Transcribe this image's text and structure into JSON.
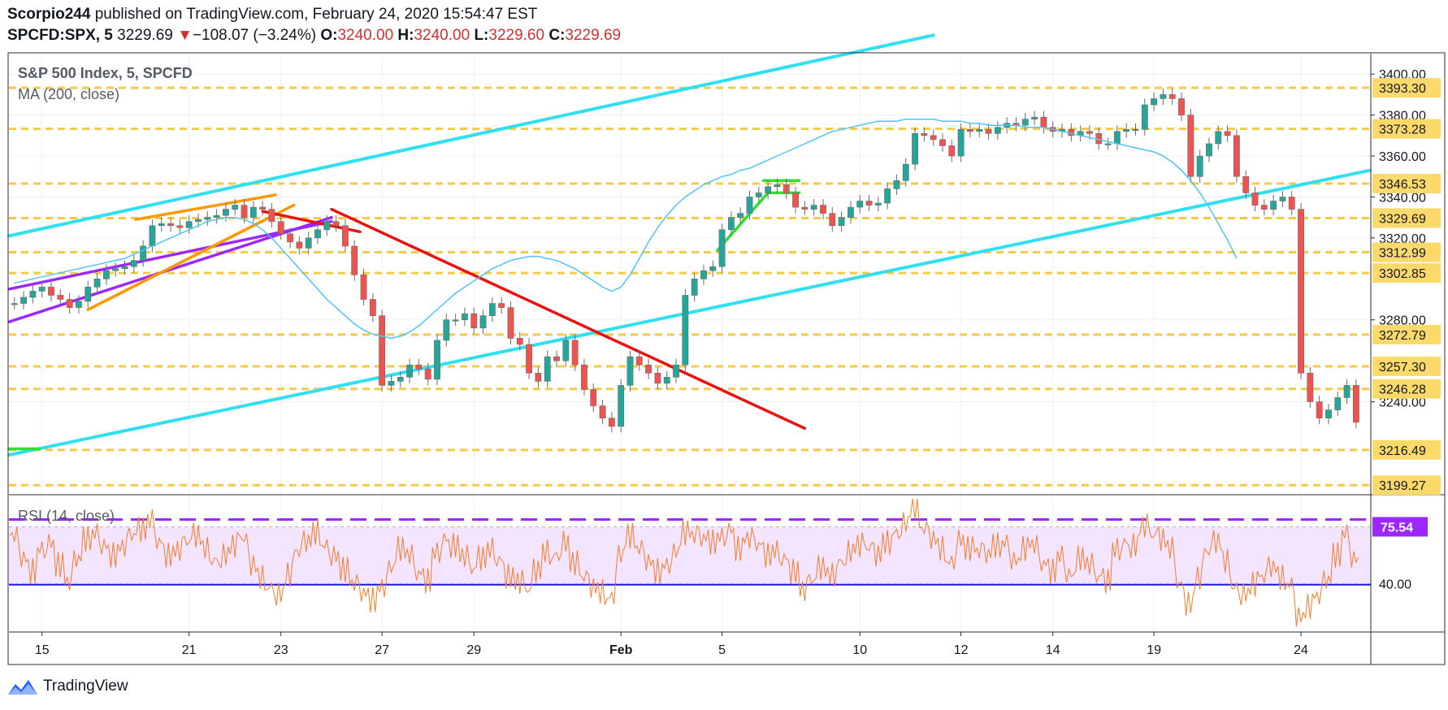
{
  "header": {
    "author": "Scorpio244",
    "published_text": "published on TradingView.com, February 24, 2020 15:54:47 EST",
    "symbol": "SPCFD:SPX, 5",
    "last": "3229.69",
    "change": "−108.07 (−3.24%)",
    "o_label": "O:",
    "o": "3240.00",
    "h_label": "H:",
    "h": "3240.00",
    "l_label": "L:",
    "l": "3229.60",
    "c_label": "C:",
    "c": "3229.69"
  },
  "brand": {
    "name": "TradingView"
  },
  "colors": {
    "candle_up": "#26a69a",
    "candle_down": "#ef5350",
    "candle_body": "#6b6b6b",
    "ma": "#4fc3f7",
    "level": "#f7c948",
    "level_label_bg": "#fbd96a",
    "cyan_trend": "#31e0f0",
    "purple_trend": "#9c27ff",
    "orange_trend": "#ff9800",
    "red_trend": "#ea1111",
    "green_trend": "#33dd33",
    "rsi_line": "#f57c28",
    "rsi_band": "#f3e5ff",
    "rsi_upper": "#9c27ff",
    "rsi_lower": "#1a1adb"
  },
  "chart_data": [
    {
      "type": "candlestick",
      "title": "S&P 500 Index, 5, SPCFD",
      "indicator": "MA (200, close)",
      "ylim": [
        3195,
        3410
      ],
      "y_ticks": [
        3240,
        3280,
        3320,
        3340,
        3360,
        3380,
        3400
      ],
      "y_tick_labels": [
        "3240.00",
        "3280.00",
        "3320.00",
        "3340.00",
        "3360.00",
        "3380.00",
        "3400.00"
      ],
      "x_ticks": [
        {
          "label": "15",
          "index": 3
        },
        {
          "label": "21",
          "index": 19
        },
        {
          "label": "23",
          "index": 29
        },
        {
          "label": "27",
          "index": 40
        },
        {
          "label": "29",
          "index": 50
        },
        {
          "label": "Feb",
          "index": 66
        },
        {
          "label": "5",
          "index": 77
        },
        {
          "label": "10",
          "index": 92
        },
        {
          "label": "12",
          "index": 103
        },
        {
          "label": "14",
          "index": 113
        },
        {
          "label": "19",
          "index": 124
        },
        {
          "label": "24",
          "index": 140
        }
      ],
      "levels": [
        {
          "value": 3393.3,
          "label": "3393.30"
        },
        {
          "value": 3373.28,
          "label": "3373.28"
        },
        {
          "value": 3346.53,
          "label": "3346.53"
        },
        {
          "value": 3329.69,
          "label": "3329.69"
        },
        {
          "value": 3312.99,
          "label": "3312.99"
        },
        {
          "value": 3302.85,
          "label": "3302.85"
        },
        {
          "value": 3272.79,
          "label": "3272.79"
        },
        {
          "value": 3257.3,
          "label": "3257.30"
        },
        {
          "value": 3246.28,
          "label": "3246.28"
        },
        {
          "value": 3216.49,
          "label": "3216.49"
        },
        {
          "value": 3199.27,
          "label": "3199.27"
        }
      ],
      "close": [
        3288,
        3291,
        3294,
        3296,
        3292,
        3290,
        3286,
        3289,
        3296,
        3300,
        3304,
        3305,
        3306,
        3309,
        3316,
        3326,
        3327,
        3326,
        3325,
        3328,
        3329,
        3330,
        3331,
        3334,
        3336,
        3330,
        3335,
        3334,
        3328,
        3322,
        3318,
        3315,
        3320,
        3324,
        3328,
        3326,
        3316,
        3302,
        3290,
        3282,
        3248,
        3250,
        3252,
        3258,
        3256,
        3251,
        3270,
        3280,
        3280,
        3283,
        3276,
        3282,
        3288,
        3286,
        3271,
        3268,
        3254,
        3250,
        3262,
        3260,
        3270,
        3258,
        3246,
        3238,
        3232,
        3228,
        3248,
        3262,
        3258,
        3254,
        3249,
        3252,
        3258,
        3292,
        3300,
        3304,
        3306,
        3324,
        3330,
        3332,
        3340,
        3342,
        3345,
        3346,
        3342,
        3335,
        3334,
        3336,
        3332,
        3326,
        3330,
        3335,
        3338,
        3336,
        3337,
        3344,
        3348,
        3356,
        3371,
        3370,
        3368,
        3365,
        3360,
        3373,
        3372,
        3373,
        3371,
        3374,
        3376,
        3375,
        3378,
        3379,
        3374,
        3372,
        3373,
        3370,
        3372,
        3371,
        3366,
        3366,
        3372,
        3373,
        3373,
        3385,
        3388,
        3390,
        3388,
        3380,
        3350,
        3360,
        3366,
        3372,
        3370,
        3350,
        3342,
        3336,
        3334,
        3338,
        3340,
        3334,
        3254,
        3240,
        3232,
        3236,
        3242,
        3248,
        3230
      ],
      "ma": [
        3298,
        3299,
        3300,
        3301,
        3302,
        3303,
        3304,
        3305,
        3306,
        3307,
        3308,
        3309,
        3310,
        3312,
        3314,
        3316,
        3318,
        3320,
        3322,
        3324,
        3326,
        3328,
        3329,
        3330,
        3330,
        3329,
        3327,
        3324,
        3320,
        3315,
        3310,
        3305,
        3300,
        3295,
        3290,
        3286,
        3282,
        3278,
        3275,
        3273,
        3272,
        3271,
        3272,
        3274,
        3277,
        3281,
        3285,
        3289,
        3293,
        3296,
        3299,
        3302,
        3305,
        3307,
        3309,
        3310,
        3311,
        3311,
        3310,
        3309,
        3307,
        3305,
        3302,
        3299,
        3296,
        3294,
        3296,
        3302,
        3310,
        3318,
        3325,
        3331,
        3336,
        3340,
        3343,
        3346,
        3348,
        3350,
        3351,
        3353,
        3354,
        3356,
        3358,
        3360,
        3362,
        3364,
        3366,
        3368,
        3370,
        3372,
        3373,
        3374,
        3375,
        3376,
        3377,
        3377,
        3377,
        3378,
        3378,
        3378,
        3378,
        3377,
        3377,
        3377,
        3376,
        3376,
        3375,
        3375,
        3375,
        3375,
        3374,
        3374,
        3374,
        3373,
        3372,
        3371,
        3370,
        3369,
        3368,
        3367,
        3366,
        3365,
        3364,
        3363,
        3362,
        3360,
        3357,
        3353,
        3348,
        3342,
        3335,
        3327,
        3319,
        3310
      ],
      "rsi": {
        "title": "RSI (14, close)",
        "level_label": "75.54",
        "tick_label": "40.00",
        "upper": 75.54,
        "lower": 40,
        "ylim": [
          10,
          95
        ],
        "values": [
          70,
          56,
          48,
          62,
          66,
          52,
          41,
          55,
          68,
          72,
          64,
          58,
          63,
          70,
          74,
          80,
          66,
          58,
          61,
          66,
          70,
          62,
          55,
          58,
          64,
          68,
          52,
          44,
          38,
          34,
          46,
          60,
          66,
          72,
          64,
          58,
          49,
          40,
          34,
          30,
          38,
          50,
          62,
          58,
          46,
          42,
          60,
          68,
          64,
          57,
          49,
          56,
          62,
          55,
          45,
          41,
          36,
          48,
          60,
          58,
          66,
          53,
          44,
          38,
          35,
          32,
          58,
          70,
          62,
          54,
          48,
          52,
          60,
          72,
          70,
          68,
          66,
          70,
          74,
          62,
          68,
          64,
          58,
          61,
          56,
          48,
          36,
          42,
          50,
          46,
          54,
          60,
          64,
          62,
          58,
          66,
          72,
          78,
          88,
          74,
          68,
          62,
          54,
          68,
          62,
          60,
          58,
          64,
          66,
          55,
          62,
          64,
          52,
          48,
          58,
          46,
          56,
          52,
          44,
          42,
          62,
          66,
          64,
          76,
          70,
          68,
          62,
          40,
          28,
          44,
          60,
          66,
          54,
          38,
          34,
          40,
          44,
          50,
          44,
          40,
          20,
          26,
          32,
          42,
          58,
          72,
          56
        ]
      }
    }
  ]
}
